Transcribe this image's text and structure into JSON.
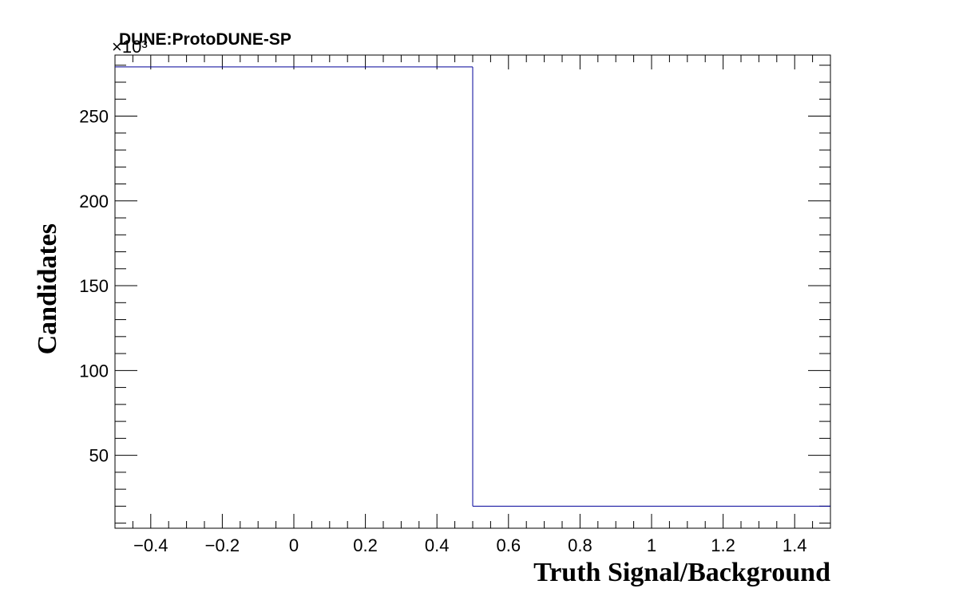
{
  "chart_data": {
    "type": "histogram",
    "title": "DUNE:ProtoDUNE-SP",
    "xlabel": "Truth Signal/Background",
    "ylabel": "Candidates",
    "y_multiplier_label": "×10³",
    "xlim": [
      -0.5,
      1.5
    ],
    "ylim": [
      7,
      286
    ],
    "bin_edges": [
      -0.5,
      0.5,
      1.5
    ],
    "values": [
      279,
      20
    ],
    "x_ticks": [
      {
        "value": -0.4,
        "label": "−0.4"
      },
      {
        "value": -0.2,
        "label": "−0.2"
      },
      {
        "value": 0,
        "label": "0"
      },
      {
        "value": 0.2,
        "label": "0.2"
      },
      {
        "value": 0.4,
        "label": "0.4"
      },
      {
        "value": 0.6,
        "label": "0.6"
      },
      {
        "value": 0.8,
        "label": "0.8"
      },
      {
        "value": 1,
        "label": "1"
      },
      {
        "value": 1.2,
        "label": "1.2"
      },
      {
        "value": 1.4,
        "label": "1.4"
      }
    ],
    "y_ticks": [
      {
        "value": 50,
        "label": "50"
      },
      {
        "value": 100,
        "label": "100"
      },
      {
        "value": 150,
        "label": "150"
      },
      {
        "value": 200,
        "label": "200"
      },
      {
        "value": 250,
        "label": "250"
      }
    ],
    "line_color": "#000099",
    "grid": false
  }
}
